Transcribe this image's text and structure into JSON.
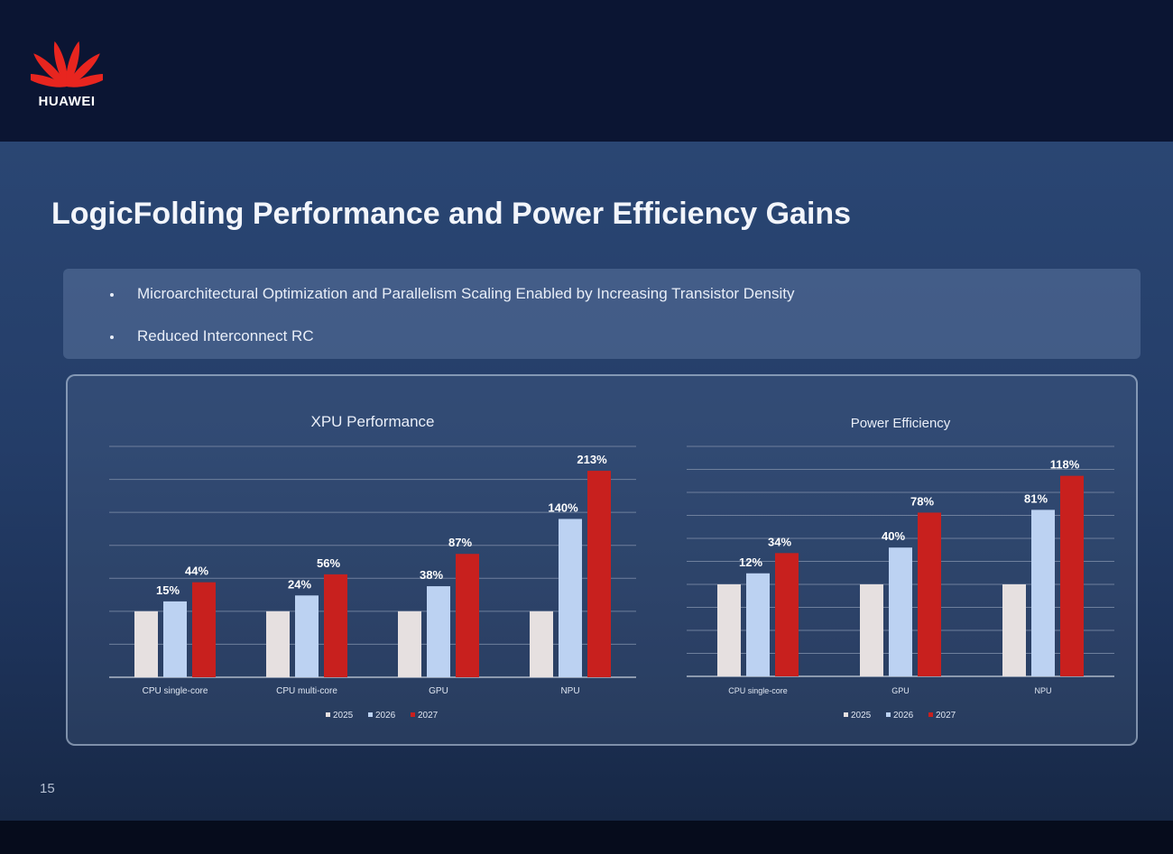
{
  "brand": {
    "name": "HUAWEI",
    "logo_icon": "huawei-flower-icon",
    "logo_color": "#e8251f"
  },
  "slide": {
    "title": "LogicFolding Performance and Power Efficiency Gains",
    "bullets": [
      "Microarchitectural Optimization and Parallelism Scaling Enabled by Increasing Transistor Density",
      "Reduced Interconnect RC"
    ],
    "page_number": "15"
  },
  "chart_data": [
    {
      "type": "bar",
      "title": "XPU Performance",
      "categories": [
        "CPU single-core",
        "CPU multi-core",
        "GPU",
        "NPU"
      ],
      "series": [
        {
          "name": "2025",
          "color": "#e6e0e0",
          "values": [
            0,
            0,
            0,
            0
          ],
          "labels": [
            "",
            "",
            "",
            ""
          ]
        },
        {
          "name": "2026",
          "color": "#bcd2f2",
          "values": [
            15,
            24,
            38,
            140
          ],
          "labels": [
            "15%",
            "24%",
            "38%",
            "140%"
          ]
        },
        {
          "name": "2027",
          "color": "#c8201e",
          "values": [
            44,
            56,
            87,
            213
          ],
          "labels": [
            "44%",
            "56%",
            "87%",
            "213%"
          ]
        }
      ],
      "ylim": [
        -100,
        250
      ],
      "grid": true,
      "legend_position": "bottom"
    },
    {
      "type": "bar",
      "title": "Power Efficiency",
      "categories": [
        "CPU single-core",
        "GPU",
        "NPU"
      ],
      "series": [
        {
          "name": "2025",
          "color": "#e6e0e0",
          "values": [
            0,
            0,
            0
          ],
          "labels": [
            "",
            "",
            ""
          ]
        },
        {
          "name": "2026",
          "color": "#bcd2f2",
          "values": [
            12,
            40,
            81
          ],
          "labels": [
            "12%",
            "40%",
            "81%"
          ]
        },
        {
          "name": "2027",
          "color": "#c8201e",
          "values": [
            34,
            78,
            118
          ],
          "labels": [
            "34%",
            "78%",
            "118%"
          ]
        }
      ],
      "ylim": [
        -100,
        150
      ],
      "grid": true,
      "legend_position": "bottom"
    }
  ]
}
